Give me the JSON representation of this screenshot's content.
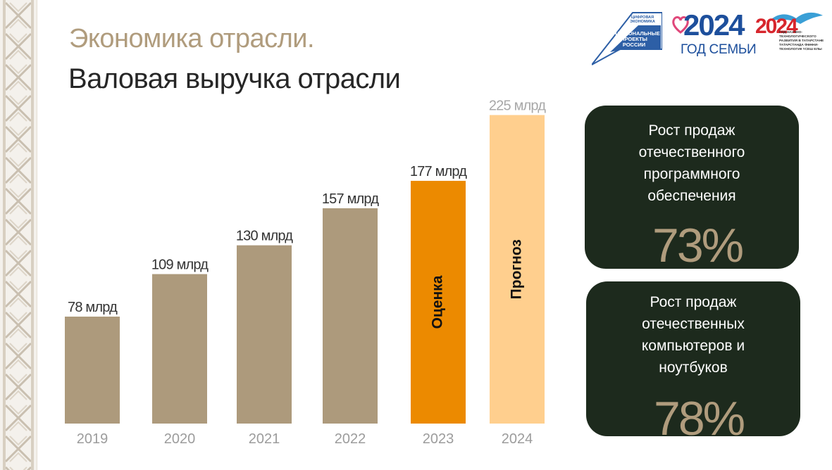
{
  "title_main": "Экономика отрасли.",
  "title_sub": "Валовая выручка отрасли",
  "logos": {
    "national_projects_top": "ЦИФРОВАЯ ЭКОНОМИКА",
    "national_projects": "НАЦИОНАЛЬНЫЕ ПРОЕКТЫ РОССИИ",
    "year_family_number": "2024",
    "year_family_caption": "ГОД СЕМЬИ",
    "science_year_number": "2024",
    "science_year_text": "ГОД НАУЧНО-ТЕХНОЛОГИЧЕСКОГО РАЗВИТИЯ В ТАТАРСТАНЕ ТАТАРСТАНДА ФӘННИ-ТЕХНОЛОГИК ҮСЕШ ЕЛЫ"
  },
  "chart_data": {
    "type": "bar",
    "categories": [
      "2019",
      "2020",
      "2021",
      "2022",
      "2023",
      "2024"
    ],
    "values": [
      78,
      109,
      130,
      157,
      177,
      225
    ],
    "data_labels": [
      "78 млрд",
      "109 млрд",
      "130 млрд",
      "157 млрд",
      "177 млрд",
      "225 млрд"
    ],
    "bar_annotations": [
      "",
      "",
      "",
      "",
      "Оценка",
      "Прогноз"
    ],
    "bar_colors": [
      "#ad9a7c",
      "#ad9a7c",
      "#ad9a7c",
      "#ad9a7c",
      "#ec8a00",
      "#ffcf8e"
    ],
    "label_colors": [
      "#333333",
      "#333333",
      "#333333",
      "#333333",
      "#333333",
      "#a8a8a8"
    ],
    "ylim": [
      0,
      235
    ],
    "grid": false,
    "legend": "none"
  },
  "cards": [
    {
      "text": "Рост продаж отечественного программного обеспечения",
      "lines": [
        "Рост продаж",
        "отечественного",
        "программного",
        "обеспечения"
      ],
      "value": "73%"
    },
    {
      "text": "Рост продаж отечественных компьютеров и ноутбуков",
      "lines": [
        "Рост продаж",
        "отечественных",
        "компьютеров и",
        "ноутбуков"
      ],
      "value": "78%"
    }
  ],
  "colors": {
    "accent_beige": "#b09c7d",
    "accent_orange": "#ec8a00",
    "accent_light_orange": "#ffcf8e",
    "card_background": "#1d2a1d",
    "year_label": "#9c9c9c"
  }
}
